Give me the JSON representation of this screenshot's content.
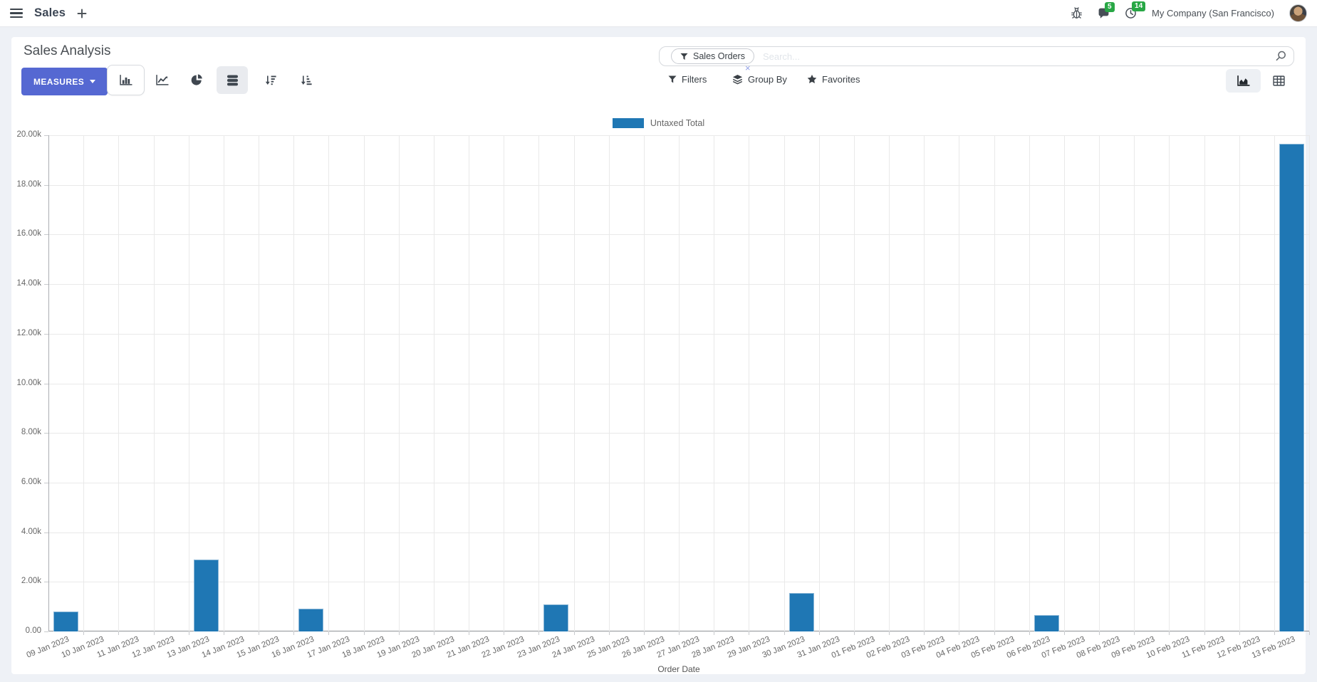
{
  "navbar": {
    "app_name": "Sales",
    "messages_badge": "5",
    "activities_badge": "14",
    "company": "My Company (San Francisco)"
  },
  "control_panel": {
    "title": "Sales Analysis",
    "measures_label": "MEASURES",
    "search": {
      "facet_label": "Sales Orders",
      "remove_glyph": "×",
      "placeholder": "Search..."
    },
    "filters_label": "Filters",
    "group_by_label": "Group By",
    "favorites_label": "Favorites"
  },
  "chart_data": {
    "type": "bar",
    "title": "",
    "xlabel": "Order Date",
    "ylabel": "",
    "ylim": [
      0,
      20000
    ],
    "ytick_step": 2000,
    "ytick_labels": [
      "0.00",
      "2.00k",
      "4.00k",
      "6.00k",
      "8.00k",
      "10.00k",
      "12.00k",
      "14.00k",
      "16.00k",
      "18.00k",
      "20.00k"
    ],
    "grid": true,
    "legend_position": "top-center",
    "categories": [
      "09 Jan 2023",
      "10 Jan 2023",
      "11 Jan 2023",
      "12 Jan 2023",
      "13 Jan 2023",
      "14 Jan 2023",
      "15 Jan 2023",
      "16 Jan 2023",
      "17 Jan 2023",
      "18 Jan 2023",
      "19 Jan 2023",
      "20 Jan 2023",
      "21 Jan 2023",
      "22 Jan 2023",
      "23 Jan 2023",
      "24 Jan 2023",
      "25 Jan 2023",
      "26 Jan 2023",
      "27 Jan 2023",
      "28 Jan 2023",
      "29 Jan 2023",
      "30 Jan 2023",
      "31 Jan 2023",
      "01 Feb 2023",
      "02 Feb 2023",
      "03 Feb 2023",
      "04 Feb 2023",
      "05 Feb 2023",
      "06 Feb 2023",
      "07 Feb 2023",
      "08 Feb 2023",
      "09 Feb 2023",
      "10 Feb 2023",
      "11 Feb 2023",
      "12 Feb 2023",
      "13 Feb 2023"
    ],
    "series": [
      {
        "name": "Untaxed Total",
        "color": "#1f77b4",
        "values": [
          800,
          0,
          0,
          0,
          2900,
          0,
          0,
          930,
          0,
          0,
          0,
          0,
          0,
          0,
          1080,
          0,
          0,
          0,
          0,
          0,
          0,
          1540,
          0,
          0,
          0,
          0,
          0,
          0,
          660,
          0,
          0,
          0,
          0,
          0,
          0,
          19660
        ]
      }
    ]
  },
  "colors": {
    "accent": "#5568d2",
    "bar": "#1f77b4",
    "badge_green": "#28a745"
  }
}
